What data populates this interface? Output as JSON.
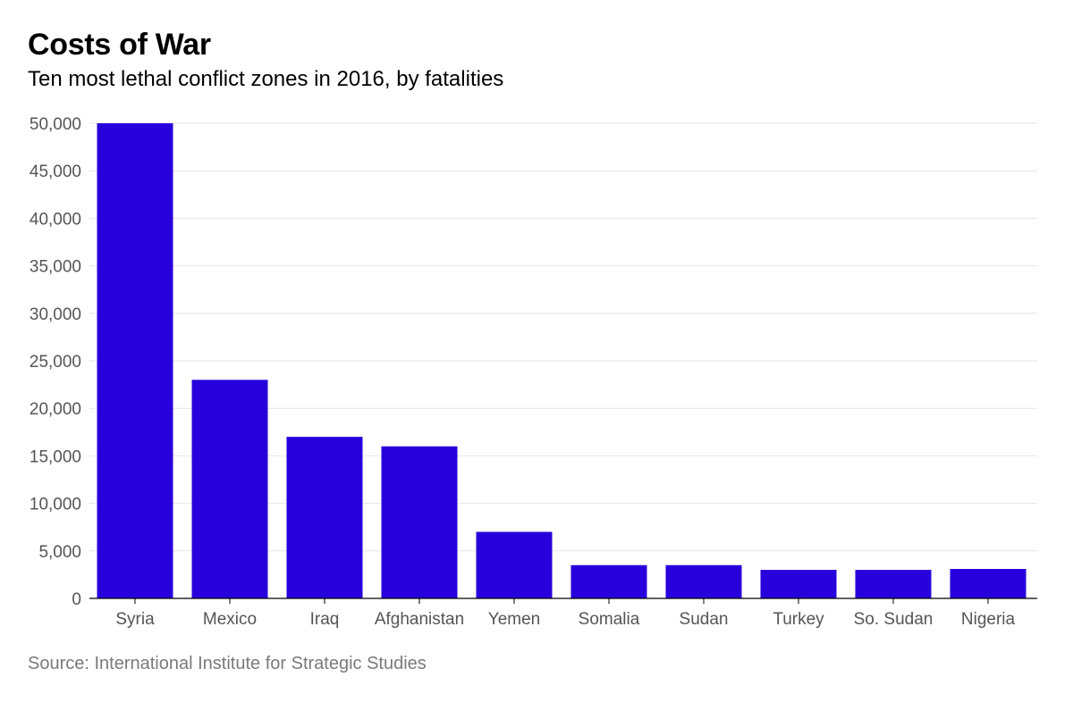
{
  "title": "Costs of War",
  "subtitle": "Ten most lethal conflict zones in 2016, by fatalities",
  "source": "Source: International Institute for Strategic Studies",
  "colors": {
    "bar": "#2800DC",
    "grid": "#e6e6e6",
    "axis": "#000000",
    "tick_text": "#555555",
    "source_text": "#7a7a7a"
  },
  "chart_data": {
    "type": "bar",
    "title": "Costs of War",
    "subtitle": "Ten most lethal conflict zones in 2016, by fatalities",
    "xlabel": "",
    "ylabel": "",
    "categories": [
      "Syria",
      "Mexico",
      "Iraq",
      "Afghanistan",
      "Yemen",
      "Somalia",
      "Sudan",
      "Turkey",
      "So. Sudan",
      "Nigeria"
    ],
    "values": [
      50000,
      23000,
      17000,
      16000,
      7000,
      3500,
      3500,
      3000,
      3000,
      3100
    ],
    "ylim": [
      0,
      50000
    ],
    "yticks": [
      0,
      5000,
      10000,
      15000,
      20000,
      25000,
      30000,
      35000,
      40000,
      45000,
      50000
    ],
    "ytick_labels": [
      "0",
      "5,000",
      "10,000",
      "15,000",
      "20,000",
      "25,000",
      "30,000",
      "35,000",
      "40,000",
      "45,000",
      "50,000"
    ],
    "grid": true,
    "legend": "none"
  }
}
